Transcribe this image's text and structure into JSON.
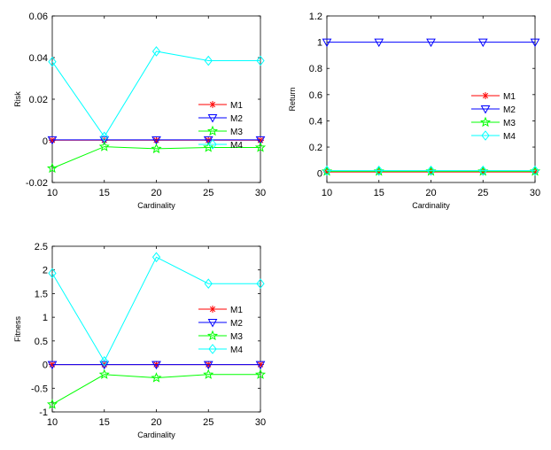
{
  "chart_data": [
    {
      "type": "line",
      "id": "risk",
      "title": "",
      "xlabel": "Cardinality",
      "ylabel": "Risk",
      "x": [
        10,
        15,
        20,
        25,
        30
      ],
      "xticks": [
        "10",
        "15",
        "20",
        "25",
        "30"
      ],
      "xlim": [
        10,
        30
      ],
      "ylim": [
        -0.02,
        0.06
      ],
      "yticks": [
        "-0.02",
        "0",
        "0.02",
        "0.04",
        "0.06"
      ],
      "ytick_values": [
        -0.02,
        0,
        0.02,
        0.04,
        0.06
      ],
      "grid": false,
      "legend_position": "center-right",
      "series": [
        {
          "name": "M1",
          "marker": "asterisk",
          "color": "#ff0000",
          "values": [
            0.0003,
            0.0003,
            0.0003,
            0.0003,
            0.0003
          ]
        },
        {
          "name": "M2",
          "marker": "triangle-down",
          "color": "#0000ff",
          "values": [
            0.0005,
            0.0005,
            0.0005,
            0.0005,
            0.0005
          ]
        },
        {
          "name": "M3",
          "marker": "star",
          "color": "#00ff00",
          "values": [
            -0.0132,
            -0.0028,
            -0.0038,
            -0.0032,
            -0.0032
          ]
        },
        {
          "name": "M4",
          "marker": "diamond",
          "color": "#00ffff",
          "values": [
            0.038,
            0.002,
            0.043,
            0.0385,
            0.0385
          ]
        }
      ]
    },
    {
      "type": "line",
      "id": "return",
      "title": "",
      "xlabel": "Cardinality",
      "ylabel": "Return",
      "x": [
        10,
        15,
        20,
        25,
        30
      ],
      "xticks": [
        "10",
        "15",
        "20",
        "25",
        "30"
      ],
      "xlim": [
        10,
        30
      ],
      "ylim": [
        -0.07,
        1.2
      ],
      "yticks": [
        "0",
        "0.2",
        "0.4",
        "0.6",
        "0.8",
        "1",
        "1.2"
      ],
      "ytick_values": [
        0,
        0.2,
        0.4,
        0.6,
        0.8,
        1.0,
        1.2
      ],
      "grid": false,
      "legend_position": "center-right",
      "series": [
        {
          "name": "M1",
          "marker": "asterisk",
          "color": "#ff0000",
          "values": [
            0.01,
            0.01,
            0.01,
            0.01,
            0.01
          ]
        },
        {
          "name": "M2",
          "marker": "triangle-down",
          "color": "#0000ff",
          "values": [
            1.0,
            1.0,
            1.0,
            1.0,
            1.0
          ]
        },
        {
          "name": "M3",
          "marker": "star",
          "color": "#00ff00",
          "values": [
            0.015,
            0.015,
            0.015,
            0.015,
            0.015
          ]
        },
        {
          "name": "M4",
          "marker": "diamond",
          "color": "#00ffff",
          "values": [
            0.02,
            0.02,
            0.02,
            0.02,
            0.02
          ]
        }
      ]
    },
    {
      "type": "line",
      "id": "fitness",
      "title": "",
      "xlabel": "Cardinality",
      "ylabel": "Fitness",
      "x": [
        10,
        15,
        20,
        25,
        30
      ],
      "xticks": [
        "10",
        "15",
        "20",
        "25",
        "30"
      ],
      "xlim": [
        10,
        30
      ],
      "ylim": [
        -1,
        2.5
      ],
      "yticks": [
        "-1",
        "-0.5",
        "0",
        "0.5",
        "1",
        "1.5",
        "2",
        "2.5"
      ],
      "ytick_values": [
        -1,
        -0.5,
        0,
        0.5,
        1,
        1.5,
        2,
        2.5
      ],
      "grid": false,
      "legend_position": "center-right",
      "series": [
        {
          "name": "M1",
          "marker": "asterisk",
          "color": "#ff0000",
          "values": [
            0,
            0,
            0,
            0,
            0
          ]
        },
        {
          "name": "M2",
          "marker": "triangle-down",
          "color": "#0000ff",
          "values": [
            0,
            0,
            0,
            0,
            0
          ]
        },
        {
          "name": "M3",
          "marker": "star",
          "color": "#00ff00",
          "values": [
            -0.84,
            -0.21,
            -0.28,
            -0.21,
            -0.21
          ]
        },
        {
          "name": "M4",
          "marker": "diamond",
          "color": "#00ffff",
          "values": [
            1.93,
            0.07,
            2.27,
            1.71,
            1.71
          ]
        }
      ]
    }
  ]
}
